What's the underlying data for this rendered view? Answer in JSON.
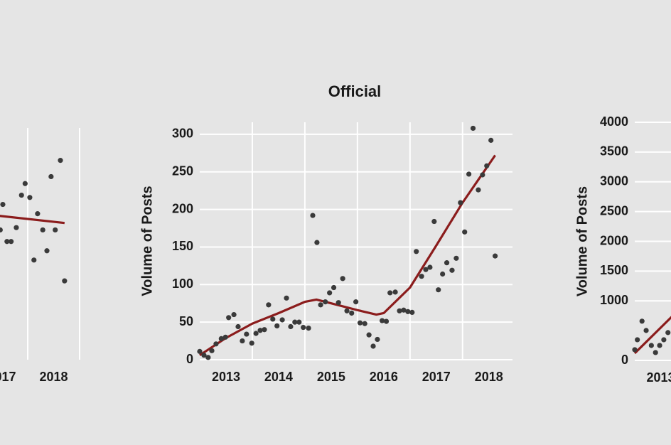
{
  "chart_data": [
    {
      "type": "scatter",
      "x": [
        2017.47,
        2017.52,
        2017.6,
        2017.68,
        2017.78,
        2017.88,
        2017.95,
        2018.04,
        2018.12,
        2018.19,
        2018.29,
        2018.37,
        2018.45,
        2018.53,
        2018.63,
        2018.71
      ],
      "values": [
        56,
        67,
        51,
        51,
        57,
        71,
        76,
        70,
        43,
        63,
        56,
        47,
        79,
        56,
        86,
        34
      ],
      "color": "#3a3a3a",
      "trend": {
        "x": [
          2017.4,
          2018.71
        ],
        "values": [
          62.2,
          59
        ],
        "color": "#8b1c1c"
      },
      "xlim": [
        2013,
        2019
      ],
      "ylim": [
        0,
        100
      ],
      "xticks": [
        {
          "value": 2017.5,
          "label": "2017"
        },
        {
          "value": 2018.5,
          "label": "2018"
        }
      ],
      "xgrid": [
        2018,
        2019
      ],
      "grid": true
    },
    {
      "type": "scatter",
      "title": "Official",
      "ylabel": "Volume of Posts",
      "x": [
        2013.0,
        2013.08,
        2013.16,
        2013.23,
        2013.31,
        2013.41,
        2013.49,
        2013.55,
        2013.65,
        2013.73,
        2013.81,
        2013.89,
        2013.99,
        2014.07,
        2014.15,
        2014.23,
        2014.31,
        2014.39,
        2014.47,
        2014.57,
        2014.65,
        2014.73,
        2014.81,
        2014.89,
        2014.97,
        2015.07,
        2015.15,
        2015.23,
        2015.3,
        2015.39,
        2015.47,
        2015.55,
        2015.64,
        2015.72,
        2015.8,
        2015.89,
        2015.97,
        2016.05,
        2016.14,
        2016.22,
        2016.3,
        2016.38,
        2016.47,
        2016.55,
        2016.62,
        2016.72,
        2016.8,
        2016.88,
        2016.96,
        2017.04,
        2017.12,
        2017.22,
        2017.3,
        2017.38,
        2017.46,
        2017.54,
        2017.62,
        2017.7,
        2017.8,
        2017.88,
        2017.96,
        2018.04,
        2018.12,
        2018.2,
        2018.3,
        2018.38,
        2018.46,
        2018.54,
        2018.62
      ],
      "values": [
        11,
        6,
        3,
        12,
        21,
        28,
        30,
        56,
        60,
        44,
        25,
        34,
        22,
        35,
        39,
        40,
        73,
        54,
        45,
        53,
        82,
        44,
        50,
        50,
        43,
        42,
        192,
        156,
        73,
        77,
        89,
        96,
        76,
        108,
        65,
        62,
        77,
        49,
        48,
        33,
        18,
        27,
        52,
        51,
        89,
        90,
        65,
        66,
        64,
        63,
        144,
        111,
        120,
        123,
        184,
        93,
        114,
        129,
        119,
        135,
        209,
        170,
        247,
        308,
        226,
        246,
        258,
        292,
        138
      ],
      "color": "#3a3a3a",
      "trend": {
        "x": [
          2013.0,
          2013.5,
          2014.0,
          2014.5,
          2015.0,
          2015.22,
          2015.5,
          2016.0,
          2016.36,
          2016.5,
          2017.0,
          2017.5,
          2018.0,
          2018.62
        ],
        "values": [
          6,
          29,
          48,
          62,
          77,
          80,
          75,
          66,
          60,
          62,
          96,
          152,
          209,
          272
        ],
        "color": "#8b1c1c"
      },
      "xlim": [
        2013,
        2018.95
      ],
      "ylim": [
        0,
        316
      ],
      "xticks": [
        {
          "value": 2013.5,
          "label": "2013"
        },
        {
          "value": 2014.5,
          "label": "2014"
        },
        {
          "value": 2015.5,
          "label": "2015"
        },
        {
          "value": 2016.5,
          "label": "2016"
        },
        {
          "value": 2017.5,
          "label": "2017"
        },
        {
          "value": 2018.5,
          "label": "2018"
        }
      ],
      "yticks": [
        0,
        50,
        100,
        150,
        200,
        250,
        300
      ],
      "xgrid": [
        2014,
        2015,
        2016,
        2017,
        2018
      ],
      "grid": true
    },
    {
      "type": "scatter",
      "ylabel": "Volume of Posts",
      "x": [
        2013.0,
        2013.05,
        2013.14,
        2013.22,
        2013.32,
        2013.4,
        2013.48,
        2013.56,
        2013.64
      ],
      "values": [
        180,
        347,
        659,
        503,
        251,
        132,
        251,
        347,
        467
      ],
      "color": "#3a3a3a",
      "trend": {
        "x": [
          2013.0,
          2013.72
        ],
        "values": [
          120,
          740
        ],
        "color": "#8b1c1c"
      },
      "xlim": [
        2013,
        2019
      ],
      "ylim": [
        0,
        4000
      ],
      "xticks": [
        {
          "value": 2013.5,
          "label": "2013"
        }
      ],
      "yticks": [
        0,
        1000,
        1500,
        2000,
        2500,
        3000,
        3500,
        4000
      ],
      "grid": true
    }
  ]
}
